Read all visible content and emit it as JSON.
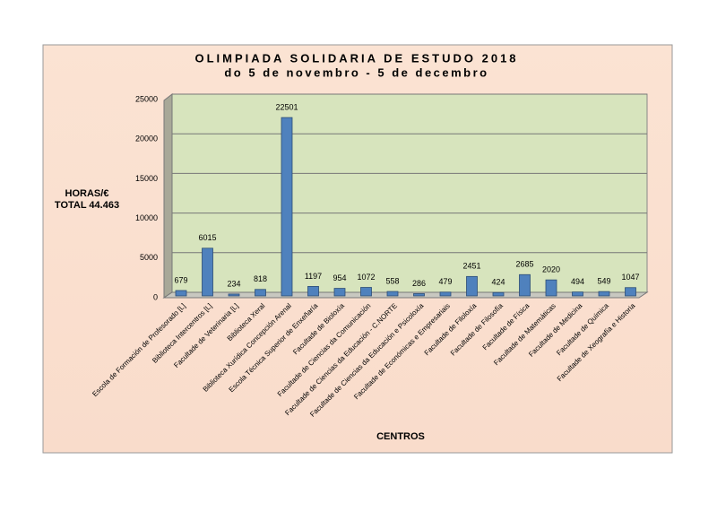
{
  "chart_data": {
    "type": "bar",
    "title": "OLIMPIADA SOLIDARIA DE ESTUDO 2018",
    "subtitle": "do 5 de novembro - 5 de decembro",
    "y_label": [
      "HORAS/€",
      "TOTAL 44.463"
    ],
    "x_label": "CENTROS",
    "categories": [
      "Escola de Formación de Profesorado [L]",
      "Biblioteca Intercentros [L]",
      "Facultade de Veterinaria [L]",
      "Biblioteca Xeral",
      "Biblioteca Xurídica Concepción Arenal",
      "Escola Técnica Superior de Enxeñaría",
      "Facultade de Bioloxía",
      "Facultade de Ciencias da Comunicación",
      "Facultade de Ciencias da Educación - C.NORTE",
      "Facultade de Ciencias da Educación e Psicoloxía",
      "Facultade de Económicas e Empresariais",
      "Facultade de Filoloxía",
      "Facultade de Filosofía",
      "Facultade de Física",
      "Facultade de Matemáticas",
      "Facultade de Medicina",
      "Facultade de Química",
      "Facultade de Xeografía e Historia"
    ],
    "values": [
      679,
      6015,
      234,
      818,
      22501,
      1197,
      954,
      1072,
      558,
      286,
      479,
      2451,
      424,
      2685,
      2020,
      494,
      549,
      1047
    ],
    "color": "#4f81bd",
    "ylim": [
      0,
      25000
    ],
    "yticks": [
      0,
      5000,
      10000,
      15000,
      20000,
      25000
    ],
    "grid": true
  }
}
